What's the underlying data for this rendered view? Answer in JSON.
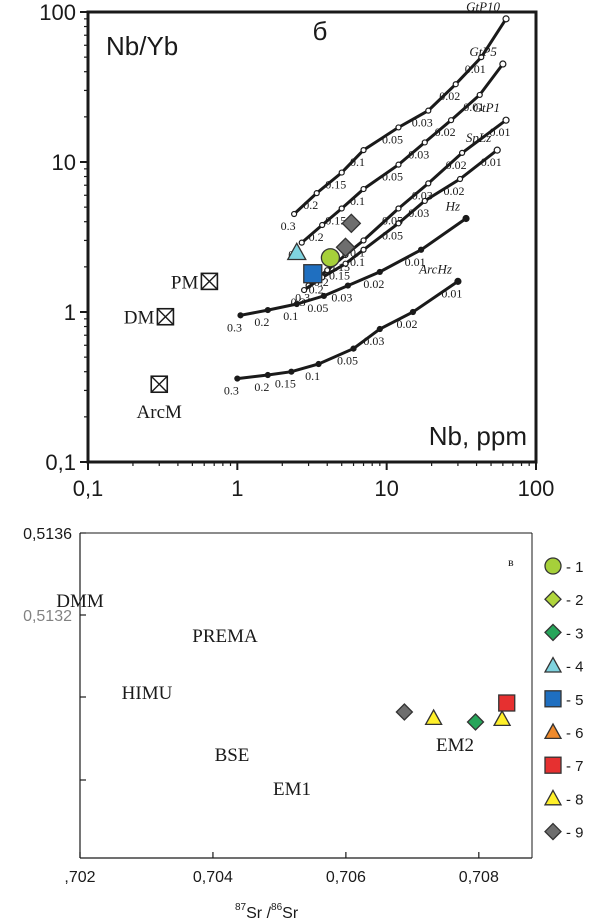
{
  "chart_data": [
    {
      "type": "line",
      "panel_letter": "б",
      "ylabel": "Nb/Yb",
      "xlabel": "Nb, ppm",
      "x_scale": "log",
      "y_scale": "log",
      "xlim": [
        0.1,
        100
      ],
      "ylim": [
        0.1,
        100
      ],
      "xticks": [
        "0,1",
        "1",
        "10",
        "100"
      ],
      "yticks": [
        "0,1",
        "1",
        "10",
        "100"
      ],
      "grid": false,
      "curves": [
        {
          "name": "GtP10",
          "x": [
            2.4,
            3.4,
            5.0,
            7.0,
            12.0,
            19.0,
            29.0,
            43.0,
            63.0
          ],
          "y": [
            4.5,
            6.2,
            8.5,
            12.0,
            17.0,
            22.0,
            33.0,
            50.0,
            90.0
          ],
          "labels": [
            "0.3",
            "0.2",
            "0.15",
            "0.1",
            "0.05",
            "0.03",
            "0.02",
            "0.01"
          ]
        },
        {
          "name": "GtP5",
          "x": [
            2.7,
            3.7,
            5.0,
            7.0,
            12.0,
            18.0,
            27.0,
            42.0,
            60.0
          ],
          "y": [
            2.9,
            3.8,
            4.9,
            6.6,
            9.6,
            13.5,
            19.0,
            28.0,
            45.0
          ],
          "labels": [
            "0.3",
            "0.2",
            "0.15",
            "0.1",
            "0.05",
            "0.03",
            "0.02",
            "0.01"
          ]
        },
        {
          "name": "GtP1",
          "x": [
            3.0,
            4.0,
            5.3,
            7.0,
            12.0,
            19.0,
            32.0,
            63.0
          ],
          "y": [
            1.5,
            1.9,
            2.4,
            3.0,
            4.9,
            7.2,
            11.5,
            19.0
          ],
          "labels": [
            "0.3",
            "0.2",
            "0.15",
            "0.1",
            "0.05",
            "0.03",
            "0.02",
            "0.01"
          ]
        },
        {
          "name": "SpLz",
          "x": [
            2.8,
            3.7,
            5.3,
            7.0,
            12.0,
            18.0,
            31.0,
            55.0
          ],
          "y": [
            1.4,
            1.7,
            2.1,
            2.6,
            3.9,
            5.5,
            7.7,
            12.0
          ],
          "labels": [
            "0.3",
            "0.2",
            "0.15",
            "0.1",
            "0.05",
            "0.03",
            "0.02",
            "0.01"
          ]
        },
        {
          "name": "Hz",
          "x": [
            1.05,
            1.6,
            2.5,
            3.8,
            5.5,
            9.0,
            17.0,
            34.0
          ],
          "y": [
            0.95,
            1.03,
            1.13,
            1.28,
            1.5,
            1.85,
            2.6,
            4.2
          ],
          "labels": [
            "0.3",
            "0.2",
            "0.1",
            "0.05",
            "0.03",
            "0.02",
            "0.01"
          ]
        },
        {
          "name": "ArcHz",
          "x": [
            1.0,
            1.6,
            2.3,
            3.5,
            6.0,
            9.0,
            15.0,
            30.0
          ],
          "y": [
            0.36,
            0.38,
            0.4,
            0.45,
            0.57,
            0.77,
            1.0,
            1.6
          ],
          "labels": [
            "0.3",
            "0.2",
            "0.15",
            "0.1",
            "0.05",
            "0.03",
            "0.02",
            "0.01"
          ]
        }
      ],
      "reference_points": [
        {
          "label": "PM",
          "x": 0.65,
          "y": 1.6
        },
        {
          "label": "DM",
          "x": 0.33,
          "y": 0.93
        },
        {
          "label": "ArcM",
          "x": 0.3,
          "y": 0.33
        }
      ],
      "samples": [
        {
          "group": "1",
          "x": 4.2,
          "y": 2.3
        },
        {
          "group": "4",
          "x": 2.5,
          "y": 2.5
        },
        {
          "group": "5",
          "x": 3.2,
          "y": 1.8
        },
        {
          "group": "9",
          "x": 5.3,
          "y": 2.7
        },
        {
          "group": "9",
          "x": 5.8,
          "y": 3.9
        }
      ]
    },
    {
      "type": "scatter",
      "panel_letter": "в",
      "xlabel": "87 Sr /86 Sr",
      "xlabel_parts": {
        "sup1": "87",
        "t1": "Sr /",
        "sup2": "86",
        "t2": "Sr"
      },
      "xlim": [
        0.702,
        0.7088
      ],
      "xticks": [
        ",702",
        "0,704",
        "0,706",
        "0,708"
      ],
      "yticks": [
        "0,5136",
        "0,5132"
      ],
      "mantle_components": [
        {
          "label": "DMM"
        },
        {
          "label": "PREMA"
        },
        {
          "label": "HIMU"
        },
        {
          "label": "BSE"
        },
        {
          "label": "EM1"
        },
        {
          "label": "EM2"
        }
      ],
      "samples": [
        {
          "group": "9",
          "x": 0.70688
        },
        {
          "group": "8",
          "x": 0.70732
        },
        {
          "group": "3",
          "x": 0.70795
        },
        {
          "group": "8",
          "x": 0.70835
        },
        {
          "group": "7",
          "x": 0.70842
        }
      ]
    }
  ],
  "legend": [
    {
      "label": "- 1",
      "shape": "circle",
      "color": "#a6d03a"
    },
    {
      "label": "- 2",
      "shape": "diamond",
      "color": "#b0d53c"
    },
    {
      "label": "- 3",
      "shape": "diamond",
      "color": "#27a55a"
    },
    {
      "label": "- 4",
      "shape": "triangle",
      "color": "#7fd3df"
    },
    {
      "label": "- 5",
      "shape": "square",
      "color": "#1f6fc0"
    },
    {
      "label": "- 6",
      "shape": "triangle",
      "color": "#ef8a2c"
    },
    {
      "label": "- 7",
      "shape": "square",
      "color": "#e63030"
    },
    {
      "label": "- 8",
      "shape": "triangle",
      "color": "#fff02a"
    },
    {
      "label": "- 9",
      "shape": "diamond",
      "color": "#6e6e6e"
    }
  ]
}
